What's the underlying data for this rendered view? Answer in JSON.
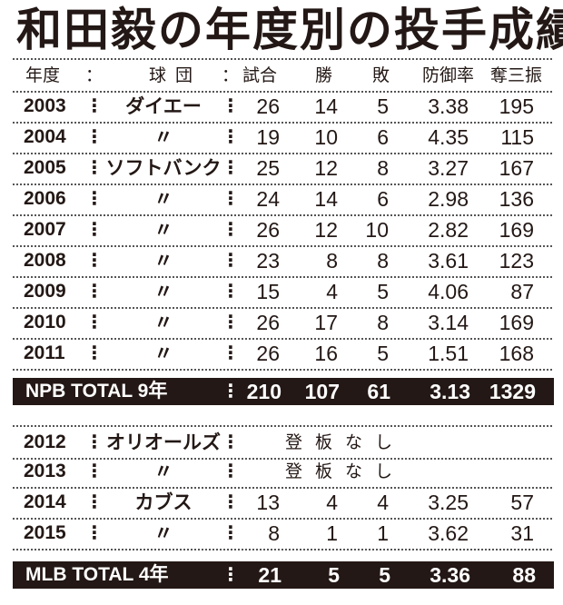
{
  "title": "和田毅の年度別の投手成績",
  "header": {
    "year": "年度",
    "sep": "：",
    "team": "球団",
    "games": "試合",
    "wins": "勝",
    "losses": "敗",
    "era": "防御率",
    "strikeouts": "奪三振"
  },
  "npb_rows": [
    {
      "year": "2003",
      "team": "ダイエー",
      "games": "26",
      "wins": "14",
      "losses": "5",
      "era": "3.38",
      "strikeouts": "195"
    },
    {
      "year": "2004",
      "team": "〃",
      "games": "19",
      "wins": "10",
      "losses": "6",
      "era": "4.35",
      "strikeouts": "115"
    },
    {
      "year": "2005",
      "team": "ソフトバンク",
      "games": "25",
      "wins": "12",
      "losses": "8",
      "era": "3.27",
      "strikeouts": "167"
    },
    {
      "year": "2006",
      "team": "〃",
      "games": "24",
      "wins": "14",
      "losses": "6",
      "era": "2.98",
      "strikeouts": "136"
    },
    {
      "year": "2007",
      "team": "〃",
      "games": "26",
      "wins": "12",
      "losses": "10",
      "era": "2.82",
      "strikeouts": "169"
    },
    {
      "year": "2008",
      "team": "〃",
      "games": "23",
      "wins": "8",
      "losses": "8",
      "era": "3.61",
      "strikeouts": "123"
    },
    {
      "year": "2009",
      "team": "〃",
      "games": "15",
      "wins": "4",
      "losses": "5",
      "era": "4.06",
      "strikeouts": "87"
    },
    {
      "year": "2010",
      "team": "〃",
      "games": "26",
      "wins": "17",
      "losses": "8",
      "era": "3.14",
      "strikeouts": "169"
    },
    {
      "year": "2011",
      "team": "〃",
      "games": "26",
      "wins": "16",
      "losses": "5",
      "era": "1.51",
      "strikeouts": "168"
    }
  ],
  "npb_total": {
    "label": "NPB TOTAL  9年",
    "games": "210",
    "wins": "107",
    "losses": "61",
    "era": "3.13",
    "strikeouts": "1329"
  },
  "mlb_rows": [
    {
      "year": "2012",
      "team": "オリオールズ",
      "note": "登板なし"
    },
    {
      "year": "2013",
      "team": "〃",
      "note": "登板なし"
    },
    {
      "year": "2014",
      "team": "カブス",
      "games": "13",
      "wins": "4",
      "losses": "4",
      "era": "3.25",
      "strikeouts": "57"
    },
    {
      "year": "2015",
      "team": "〃",
      "games": "8",
      "wins": "1",
      "losses": "1",
      "era": "3.62",
      "strikeouts": "31"
    }
  ],
  "mlb_total": {
    "label": "MLB TOTAL  4年",
    "games": "21",
    "wins": "5",
    "losses": "5",
    "era": "3.36",
    "strikeouts": "88"
  }
}
